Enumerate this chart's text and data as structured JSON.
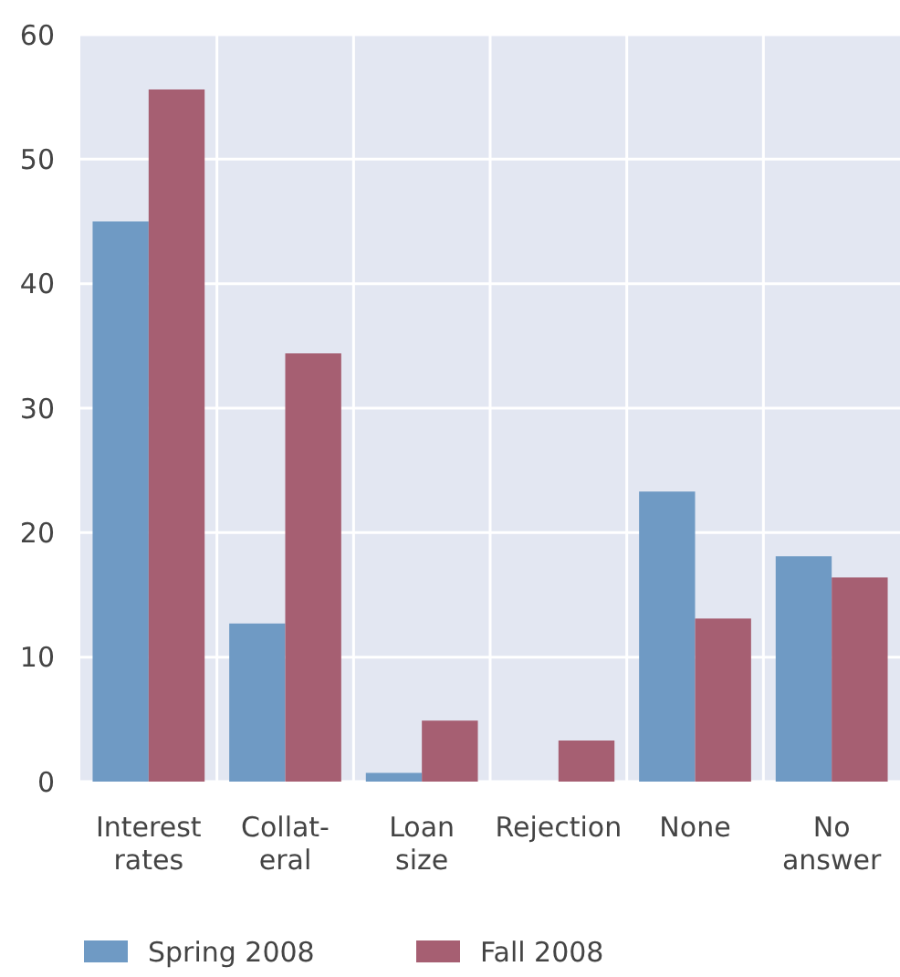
{
  "chart_data": {
    "type": "bar",
    "categories": [
      "Interest\nrates",
      "Collat-\neral",
      "Loan\nsize",
      "Rejection",
      "None",
      "No\nanswer"
    ],
    "series": [
      {
        "name": "Spring 2008",
        "color": "#6f9ac4",
        "values": [
          45.0,
          12.7,
          0.7,
          0,
          23.3,
          18.1
        ]
      },
      {
        "name": "Fall 2008",
        "color": "#a65f72",
        "values": [
          55.6,
          34.4,
          4.9,
          3.3,
          13.1,
          16.4
        ]
      }
    ],
    "ylim": [
      0,
      60
    ],
    "yticks": [
      0,
      10,
      20,
      30,
      40,
      50,
      60
    ],
    "grid": true,
    "legend": "bottom"
  }
}
